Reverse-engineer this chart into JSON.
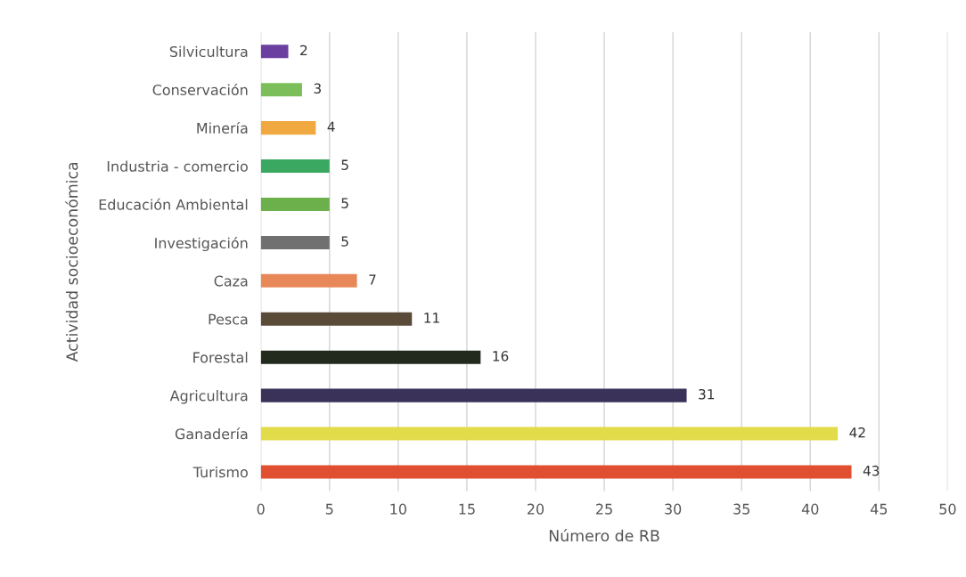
{
  "chart_data": {
    "type": "bar",
    "orientation": "horizontal",
    "categories": [
      "Silvicultura",
      "Conservación",
      "Minería",
      "Industria - comercio",
      "Educación Ambiental",
      "Investigación",
      "Caza",
      "Pesca",
      "Forestal",
      "Agricultura",
      "Ganadería",
      "Turismo"
    ],
    "values": [
      2,
      3,
      4,
      5,
      5,
      5,
      7,
      11,
      16,
      31,
      42,
      43
    ],
    "colors": [
      "#6a3fa0",
      "#7cbf5a",
      "#f0a840",
      "#3aa860",
      "#6cb04c",
      "#707070",
      "#e88858",
      "#5a4a38",
      "#222a1e",
      "#3a3258",
      "#e2dc4a",
      "#e05030"
    ],
    "xlabel": "Número de RB",
    "ylabel": "Actividad socioeconómica",
    "xlim": [
      0,
      50
    ],
    "xticks": [
      0,
      5,
      10,
      15,
      20,
      25,
      30,
      35,
      40,
      45,
      50
    ],
    "grid": "x",
    "data_labels": true,
    "legend": false
  }
}
